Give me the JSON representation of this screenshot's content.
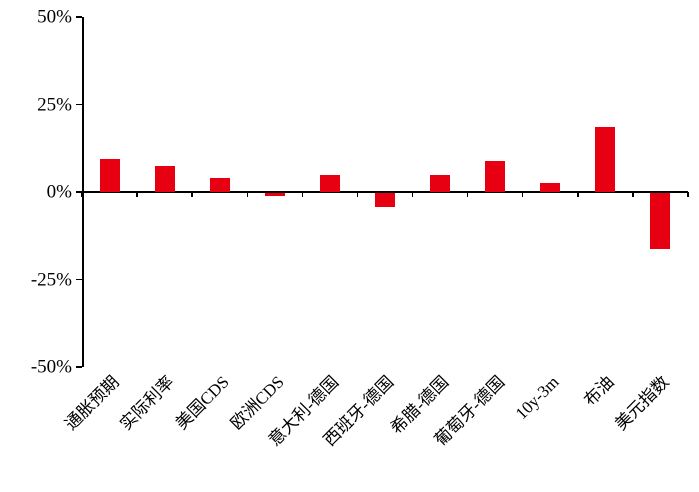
{
  "chart_data": {
    "type": "bar",
    "title": "",
    "xlabel": "",
    "ylabel": "",
    "categories": [
      "通胀预期",
      "实际利率",
      "美国CDS",
      "欧洲CDS",
      "意大利-德国",
      "西班牙-德国",
      "希腊-德国",
      "葡萄牙-德国",
      "10y-3m",
      "布油",
      "美元指数"
    ],
    "values": [
      9.5,
      7.5,
      4,
      -1,
      5,
      -4,
      5,
      9,
      2.5,
      18.5,
      -16
    ],
    "value_unit": "%",
    "ylim": [
      -50,
      50
    ],
    "yticks": [
      {
        "value": 50,
        "label": "50%"
      },
      {
        "value": 25,
        "label": "25%"
      },
      {
        "value": 0,
        "label": "0%"
      },
      {
        "value": -25,
        "label": "-25%"
      },
      {
        "value": -50,
        "label": "-50%"
      }
    ],
    "grid": false,
    "legend": null,
    "colors": {
      "bar": "#e60012",
      "axis": "#000000",
      "text": "#000000",
      "background": "#ffffff"
    }
  }
}
